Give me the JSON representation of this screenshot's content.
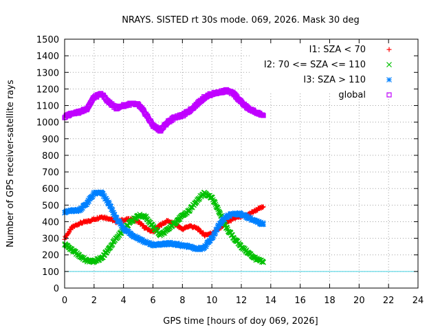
{
  "chart_data": {
    "type": "scatter",
    "title": "NRAYS. SISTED rt 30s mode. 069, 2026. Mask 30 deg",
    "xlabel": "GPS time [hours of doy 069, 2026]",
    "ylabel": "Number of GPS receiver-satellite rays",
    "xlim": [
      0,
      24
    ],
    "ylim": [
      0,
      1500
    ],
    "x_ticks": [
      0,
      2,
      4,
      6,
      8,
      10,
      12,
      14,
      16,
      18,
      20,
      22,
      24
    ],
    "y_ticks": [
      0,
      100,
      200,
      300,
      400,
      500,
      600,
      700,
      800,
      900,
      1000,
      1100,
      1200,
      1300,
      1400,
      1500
    ],
    "grid": true,
    "legend_position": "top-right",
    "reference_line": {
      "y": 100,
      "color": "#40d0e0"
    },
    "series": [
      {
        "name": "I1: SZA < 70",
        "marker": "+",
        "color": "#ff0000",
        "x": [
          0,
          0.5,
          1,
          1.5,
          2,
          2.5,
          3,
          3.5,
          4,
          4.5,
          5,
          5.5,
          6,
          6.5,
          7,
          7.5,
          8,
          8.5,
          9,
          9.5,
          10,
          10.5,
          11,
          11.5,
          12,
          12.5,
          13,
          13.5
        ],
        "y": [
          300,
          365,
          390,
          400,
          415,
          430,
          420,
          400,
          410,
          415,
          400,
          360,
          340,
          380,
          405,
          385,
          355,
          375,
          360,
          320,
          330,
          360,
          395,
          420,
          430,
          445,
          470,
          490
        ]
      },
      {
        "name": "I2: 70 <= SZA <= 110",
        "marker": "x",
        "color": "#00c000",
        "x": [
          0,
          0.5,
          1,
          1.5,
          2,
          2.5,
          3,
          3.5,
          4,
          4.5,
          5,
          5.5,
          6,
          6.5,
          7,
          7.5,
          8,
          8.5,
          9,
          9.5,
          10,
          10.5,
          11,
          11.5,
          12,
          12.5,
          13,
          13.5
        ],
        "y": [
          265,
          230,
          195,
          165,
          160,
          180,
          235,
          300,
          350,
          400,
          440,
          430,
          370,
          320,
          350,
          395,
          435,
          470,
          530,
          575,
          545,
          460,
          360,
          300,
          250,
          210,
          175,
          155
        ]
      },
      {
        "name": "I3: SZA > 110",
        "marker": "*",
        "color": "#0080ff",
        "x": [
          0,
          0.5,
          1,
          1.5,
          2,
          2.5,
          3,
          3.5,
          4,
          4.5,
          5,
          5.5,
          6,
          6.5,
          7,
          7.5,
          8,
          8.5,
          9,
          9.5,
          10,
          10.5,
          11,
          11.5,
          12,
          12.5,
          13,
          13.5
        ],
        "y": [
          460,
          465,
          470,
          510,
          570,
          575,
          510,
          420,
          360,
          325,
          300,
          275,
          260,
          262,
          270,
          265,
          255,
          250,
          235,
          245,
          300,
          380,
          430,
          450,
          445,
          425,
          400,
          385
        ]
      },
      {
        "name": "global",
        "marker": "square",
        "color": "#c000ff",
        "x": [
          0,
          0.5,
          1,
          1.5,
          2,
          2.5,
          3,
          3.5,
          4,
          4.5,
          5,
          5.5,
          6,
          6.5,
          7,
          7.5,
          8,
          8.5,
          9,
          9.5,
          10,
          10.5,
          11,
          11.5,
          12,
          12.5,
          13,
          13.5
        ],
        "y": [
          1030,
          1055,
          1060,
          1080,
          1150,
          1170,
          1120,
          1085,
          1100,
          1110,
          1105,
          1050,
          980,
          950,
          1000,
          1030,
          1040,
          1070,
          1110,
          1150,
          1170,
          1180,
          1190,
          1170,
          1120,
          1080,
          1060,
          1040
        ]
      }
    ]
  }
}
